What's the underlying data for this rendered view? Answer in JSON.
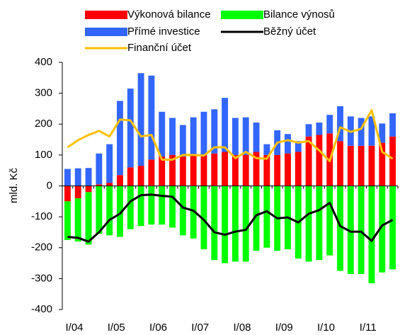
{
  "chart_data": {
    "type": "stacked_bar_line",
    "y_label": "mld. Kč",
    "categories": [
      "I/04",
      null,
      null,
      null,
      "I/05",
      null,
      null,
      null,
      "I/06",
      null,
      null,
      null,
      "I/07",
      null,
      null,
      null,
      "I/08",
      null,
      null,
      null,
      "I/09",
      null,
      null,
      null,
      "I/10",
      null,
      null,
      null,
      "I/11",
      null,
      null,
      null
    ],
    "series": [
      {
        "name": "Výkonová bilance",
        "color": "#ff0000",
        "kind": "bar",
        "values": [
          -50,
          -40,
          -20,
          5,
          10,
          35,
          60,
          65,
          85,
          95,
          100,
          95,
          100,
          100,
          105,
          110,
          100,
          100,
          110,
          100,
          100,
          105,
          110,
          160,
          165,
          170,
          145,
          130,
          130,
          130,
          140,
          160
        ]
      },
      {
        "name": "Bilance výnosů",
        "color": "#00ff00",
        "kind": "bar",
        "values": [
          -125,
          -140,
          -170,
          -155,
          -160,
          -165,
          -140,
          -130,
          -125,
          -125,
          -135,
          -160,
          -170,
          -205,
          -240,
          -250,
          -245,
          -245,
          -210,
          -200,
          -210,
          -205,
          -235,
          -245,
          -240,
          -225,
          -275,
          -285,
          -285,
          -315,
          -280,
          -270
        ]
      },
      {
        "name": "Přímé investice",
        "color": "#3366ff",
        "kind": "bar",
        "values": [
          55,
          57,
          58,
          100,
          125,
          240,
          255,
          300,
          272,
          145,
          120,
          102,
          122,
          140,
          143,
          175,
          120,
          122,
          95,
          35,
          80,
          63,
          35,
          40,
          40,
          60,
          113,
          95,
          90,
          95,
          62,
          75
        ]
      },
      {
        "name": "Běžný účet",
        "color": "#000000",
        "kind": "line",
        "values": [
          -165,
          -168,
          -180,
          -150,
          -110,
          -90,
          -50,
          -30,
          -28,
          -32,
          -35,
          -70,
          -80,
          -110,
          -150,
          -158,
          -148,
          -142,
          -95,
          -82,
          -105,
          -102,
          -118,
          -90,
          -78,
          -55,
          -130,
          -148,
          -148,
          -178,
          -128,
          -110
        ]
      },
      {
        "name": "Finanční účet",
        "color": "#ffc000",
        "kind": "line",
        "values": [
          125,
          148,
          165,
          178,
          160,
          215,
          212,
          160,
          165,
          85,
          85,
          100,
          100,
          98,
          125,
          125,
          90,
          110,
          90,
          88,
          140,
          148,
          140,
          145,
          115,
          80,
          190,
          175,
          185,
          245,
          110,
          88
        ]
      }
    ],
    "ylim": [
      -400,
      400
    ],
    "yticks": [
      -400,
      -300,
      -200,
      -100,
      0,
      100,
      200,
      300,
      400
    ]
  }
}
